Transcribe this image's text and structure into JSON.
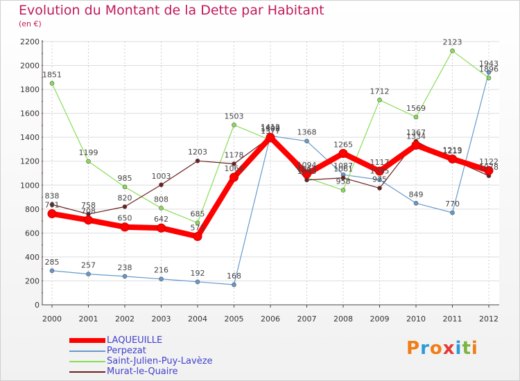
{
  "title": "Evolution du Montant de la Dette par Habitant",
  "subtitle": "(en €)",
  "logo": "Proxiti",
  "chart_data": {
    "type": "line",
    "categories": [
      "2000",
      "2001",
      "2002",
      "2003",
      "2004",
      "2005",
      "2006",
      "2007",
      "2008",
      "2009",
      "2010",
      "2011",
      "2012"
    ],
    "ylim": [
      0,
      2200
    ],
    "yticks": [
      0,
      200,
      400,
      600,
      800,
      1000,
      1200,
      1400,
      1600,
      1800,
      2000,
      2200
    ],
    "grid": true,
    "legend_position": "bottom-left",
    "series": [
      {
        "name": "LAQUEUILLE",
        "color": "#ff0000",
        "emphasis": true,
        "values": [
          761,
          708,
          650,
          642,
          571,
          1066,
          1399,
          1094,
          1265,
          1117,
          1334,
          1219,
          1122
        ]
      },
      {
        "name": "Perpezat",
        "color": "#6699cc",
        "values": [
          285,
          257,
          238,
          216,
          192,
          168,
          1412,
          1368,
          1087,
          1045,
          849,
          770,
          1943
        ]
      },
      {
        "name": "Saint-Julien-Puy-Lavèze",
        "color": "#88dd55",
        "values": [
          1851,
          1199,
          985,
          808,
          685,
          1503,
          1377,
          1063,
          958,
          1712,
          1569,
          2123,
          1896
        ]
      },
      {
        "name": "Murat-le-Quaire",
        "color": "#6b1f1f",
        "values": [
          838,
          758,
          820,
          1003,
          1203,
          1178,
          1402,
          1043,
          1061,
          975,
          1367,
          1213,
          1078
        ]
      }
    ]
  }
}
